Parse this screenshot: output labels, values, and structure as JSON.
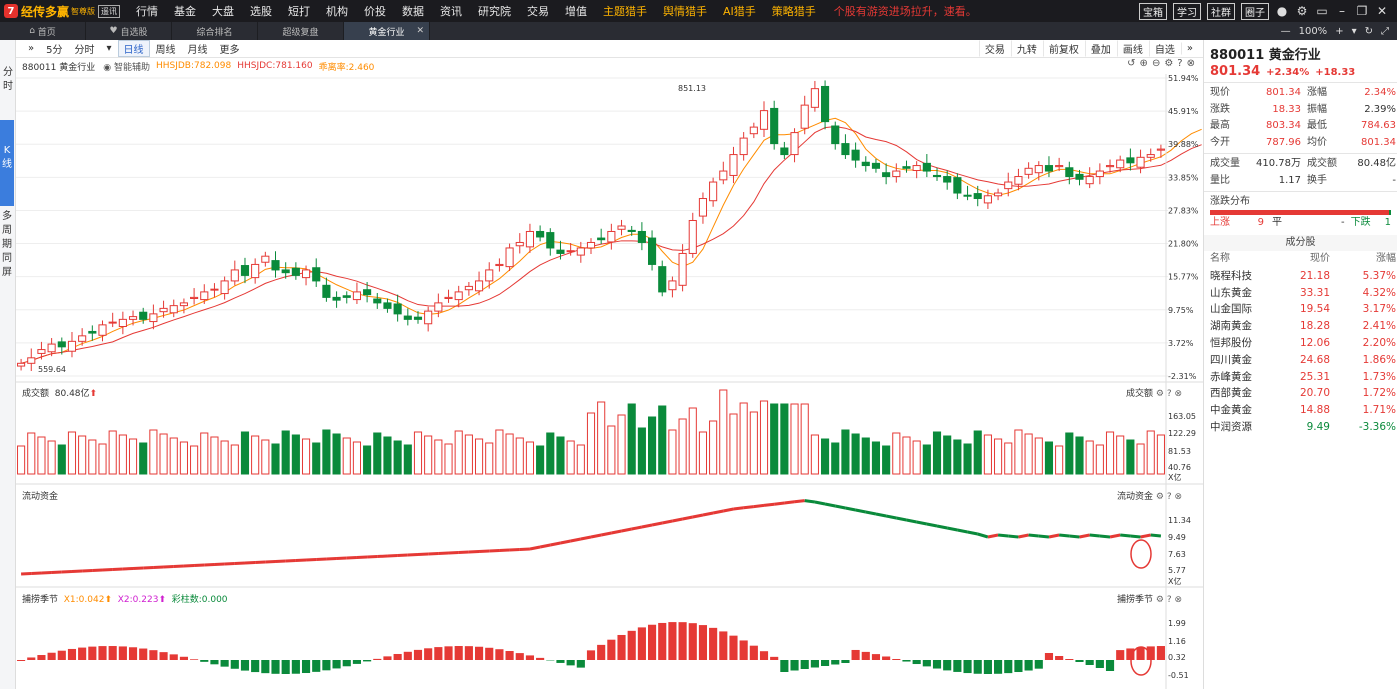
{
  "app": {
    "name": "经传多赢",
    "edition": "智尊版",
    "mode": "遥讯"
  },
  "menu": [
    "行情",
    "基金",
    "大盘",
    "选股",
    "短打",
    "机构",
    "价投",
    "数据",
    "资讯",
    "研究院",
    "交易",
    "增值",
    "主题猎手",
    "舆情猎手",
    "AI猎手",
    "策略猎手"
  ],
  "promo": "个股有游资进场拉升，速看。",
  "topright": {
    "btns": [
      "宝箱",
      "学习",
      "社群",
      "圈子"
    ],
    "zoom": "100%"
  },
  "tabs": [
    {
      "label": "首页"
    },
    {
      "label": "自选股"
    },
    {
      "label": "综合排名"
    },
    {
      "label": "超级复盘"
    },
    {
      "label": "黄金行业"
    }
  ],
  "sidebar": [
    "分时",
    "K线",
    "多周期同屏"
  ],
  "periods": [
    "5分",
    "分时",
    "日线",
    "周线",
    "月线",
    "更多"
  ],
  "tools": [
    "交易",
    "九转",
    "前复权",
    "叠加",
    "画线",
    "自选"
  ],
  "chart_info": {
    "code": "880011 黄金行业",
    "assist": "智能辅助",
    "hhsjdb": "HHSJDB:782.098",
    "hhsjdc": "HHSJDC:781.160",
    "pct": "乖离率:2.460"
  },
  "colors": {
    "up": "#e53935",
    "down": "#0a8a3b",
    "ma1": "#ff8c00",
    "ma2": "#e53935"
  },
  "panels": {
    "price": {
      "yticks": [
        "51.94%",
        "45.91%",
        "39.88%",
        "33.85%",
        "27.83%",
        "21.80%",
        "15.77%",
        "9.75%",
        "3.72%",
        "-2.31%"
      ],
      "high_label": "851.13",
      "low_label": "559.64"
    },
    "volume": {
      "name": "成交额",
      "value": "80.48亿",
      "right": "成交额",
      "yticks": [
        "163.05",
        "122.29",
        "81.53",
        "40.76",
        "X亿"
      ]
    },
    "flow": {
      "name": "流动资金",
      "right": "流动资金",
      "yticks": [
        "11.34",
        "9.49",
        "7.63",
        "5.77",
        "X亿"
      ]
    },
    "season": {
      "name": "捕捞季节",
      "x1": "X1:0.042",
      "x2": "X2:0.223",
      "bars": "彩柱数:0.000",
      "right": "捕捞季节",
      "yticks": [
        "1.99",
        "1.16",
        "0.32",
        "-0.51"
      ]
    }
  },
  "chart_data": {
    "type": "candlestick",
    "title": "880011 黄金行业",
    "ylabel": "%",
    "ylim": [
      -2.31,
      51.94
    ],
    "high": 851.13,
    "low": 559.64,
    "series": [
      {
        "name": "成交额",
        "unit": "亿"
      },
      {
        "name": "流动资金",
        "unit": "亿"
      },
      {
        "name": "捕捞季节"
      }
    ]
  },
  "quote": {
    "title": "880011 黄金行业",
    "price": "801.34",
    "pct": "+2.34%",
    "chg": "+18.33",
    "rows": [
      [
        "现价",
        "801.34",
        "涨幅",
        "2.34%"
      ],
      [
        "涨跌",
        "18.33",
        "振幅",
        "2.39%"
      ],
      [
        "最高",
        "803.34",
        "最低",
        "784.63"
      ],
      [
        "今开",
        "787.96",
        "均价",
        "801.34"
      ],
      [
        "成交量",
        "410.78万",
        "成交额",
        "80.48亿"
      ],
      [
        "量比",
        "1.17",
        "换手",
        "-"
      ]
    ]
  },
  "dist": {
    "label": "涨跌分布",
    "up_lbl": "上涨",
    "up": "9",
    "flat_lbl": "平",
    "flat": "-",
    "down_lbl": "下跌",
    "down": "1"
  },
  "components": {
    "title": "成分股",
    "headers": [
      "名称",
      "现价",
      "涨幅"
    ],
    "rows": [
      [
        "晓程科技",
        "21.18",
        "5.37%"
      ],
      [
        "山东黄金",
        "33.31",
        "4.32%"
      ],
      [
        "山金国际",
        "19.54",
        "3.17%"
      ],
      [
        "湖南黄金",
        "18.28",
        "2.41%"
      ],
      [
        "恒邦股份",
        "12.06",
        "2.20%"
      ],
      [
        "四川黄金",
        "24.68",
        "1.86%"
      ],
      [
        "赤峰黄金",
        "25.31",
        "1.73%"
      ],
      [
        "西部黄金",
        "20.70",
        "1.72%"
      ],
      [
        "中金黄金",
        "14.88",
        "1.71%"
      ],
      [
        "中润资源",
        "9.49",
        "-3.36%"
      ]
    ]
  }
}
